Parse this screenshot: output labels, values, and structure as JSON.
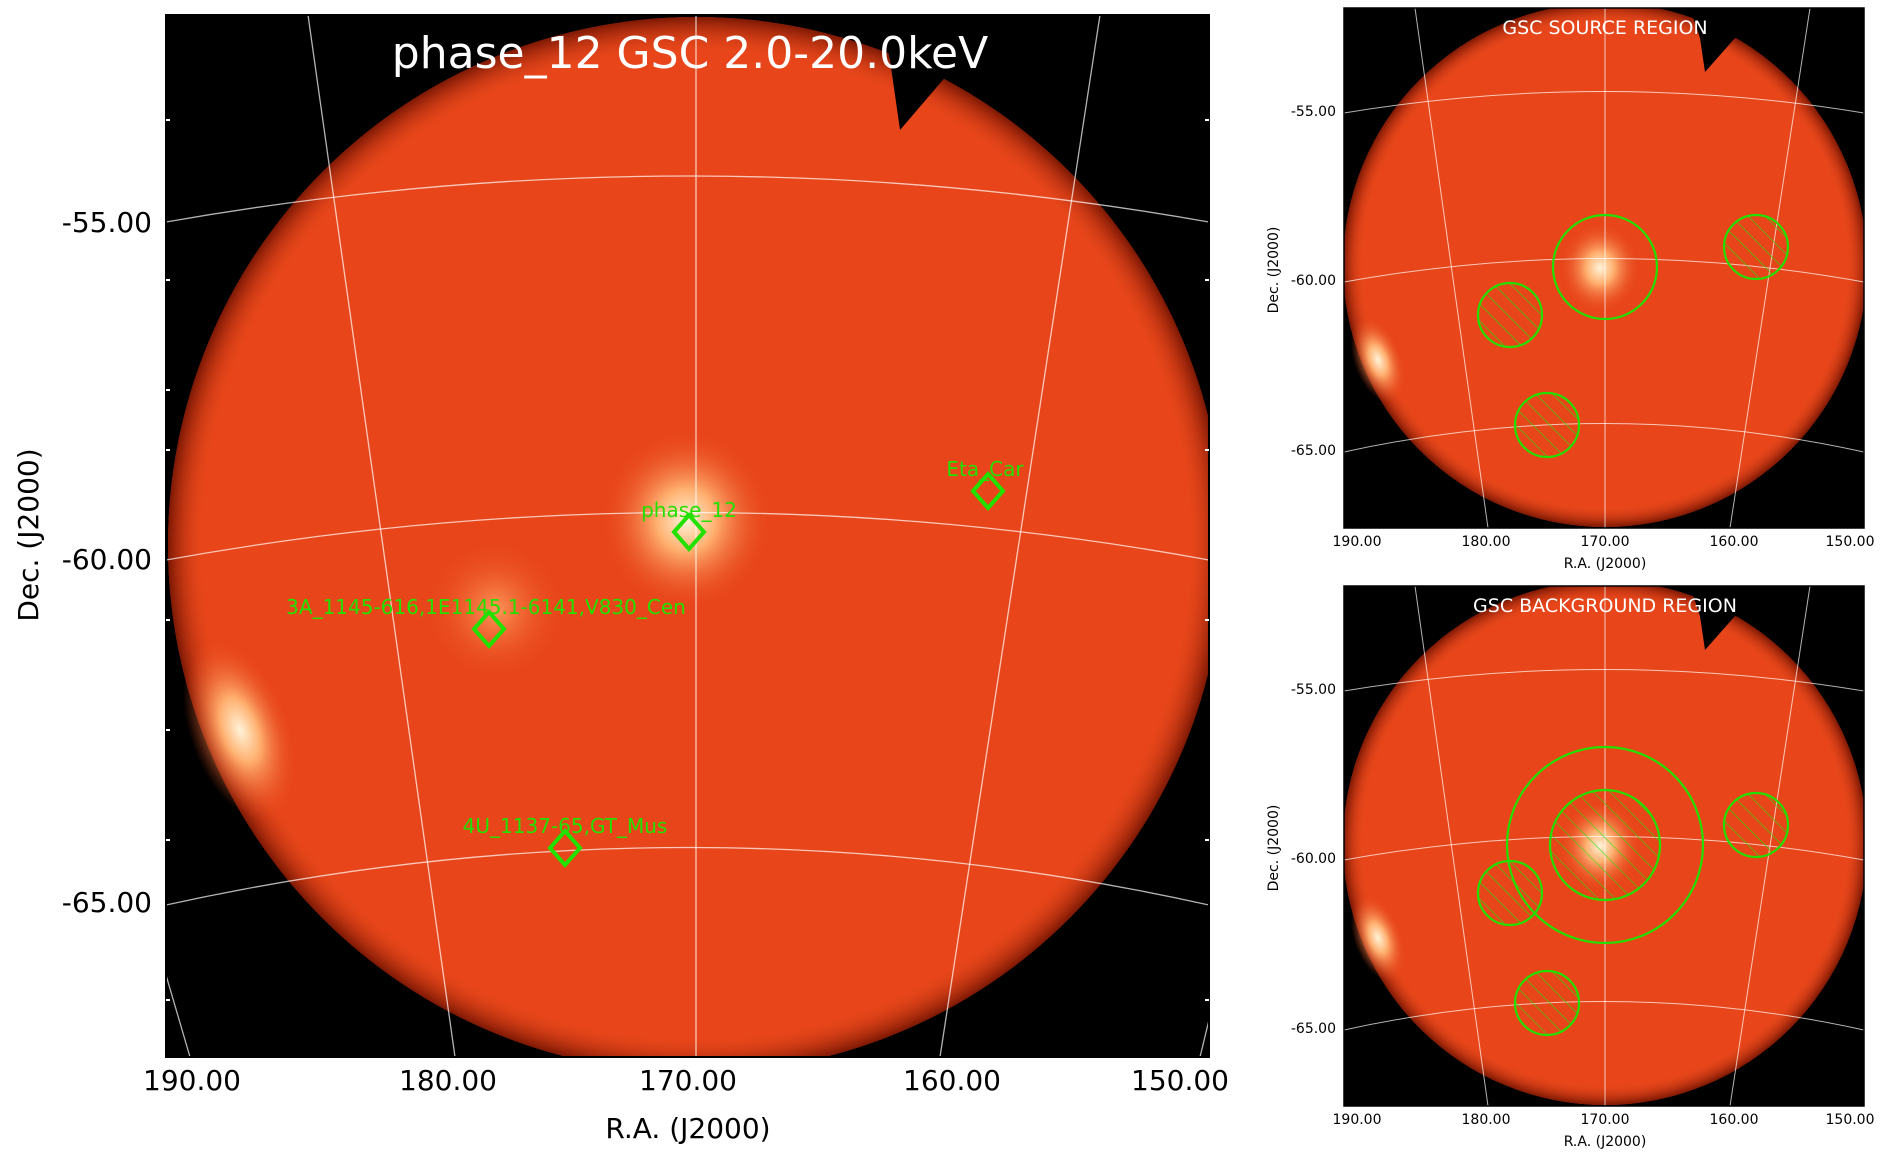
{
  "main": {
    "title": "phase_12 GSC 2.0-20.0keV",
    "xlabel": "R.A. (J2000)",
    "ylabel": "Dec. (J2000)",
    "xticks": [
      "190.00",
      "180.00",
      "170.00",
      "160.00",
      "150.00"
    ],
    "yticks": [
      "-55.00",
      "-60.00",
      "-65.00"
    ],
    "sources": [
      {
        "label": "Eta_Car"
      },
      {
        "label": "phase_12"
      },
      {
        "label": "3A_1145-616,1E1145.1-6141,V830_Cen"
      },
      {
        "label": "4U_1137-65,GT_Mus"
      }
    ]
  },
  "source_region": {
    "title": "GSC SOURCE REGION",
    "xlabel": "R.A. (J2000)",
    "ylabel": "Dec. (J2000)",
    "xticks": [
      "190.00",
      "180.00",
      "170.00",
      "160.00",
      "150.00"
    ],
    "yticks": [
      "-55.00",
      "-60.00",
      "-65.00"
    ]
  },
  "background_region": {
    "title": "GSC BACKGROUND REGION",
    "xlabel": "R.A. (J2000)",
    "ylabel": "Dec. (J2000)",
    "xticks": [
      "190.00",
      "180.00",
      "170.00",
      "160.00",
      "150.00"
    ],
    "yticks": [
      "-55.00",
      "-60.00",
      "-65.00"
    ]
  },
  "colors": {
    "sky": "#e8461a",
    "bright": "#fff3d8",
    "marker": "#22e000",
    "grid": "#ffffff",
    "outside": "#000000"
  }
}
